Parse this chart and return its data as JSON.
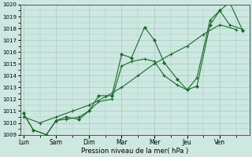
{
  "xlabel": "Pression niveau de la mer( hPa )",
  "ylim": [
    1009,
    1020
  ],
  "yticks": [
    1009,
    1010,
    1011,
    1012,
    1013,
    1014,
    1015,
    1016,
    1017,
    1018,
    1019,
    1020
  ],
  "xtick_labels": [
    "Lun",
    "Sam",
    "Dim",
    "Mar",
    "Mer",
    "Jeu",
    "Ven"
  ],
  "bg_color": "#cce8e0",
  "grid_color": "#a8c8c0",
  "line_color": "#1a6b2a",
  "marker_color": "#1a6b2a",
  "n_days": 7,
  "series1_x": [
    0,
    0.3,
    0.7,
    1.0,
    1.3,
    1.7,
    2.0,
    2.3,
    2.7,
    3.0,
    3.3,
    3.7,
    4.0,
    4.3,
    4.7,
    5.0,
    5.3,
    5.7,
    6.0,
    6.3,
    6.7
  ],
  "series1_y": [
    1010.8,
    1009.4,
    1009.0,
    1010.2,
    1010.5,
    1010.3,
    1011.0,
    1012.3,
    1012.3,
    1015.8,
    1015.5,
    1018.1,
    1017.0,
    1015.1,
    1013.7,
    1012.8,
    1013.1,
    1018.3,
    1019.5,
    1020.2,
    1017.8
  ],
  "series2_x": [
    0,
    0.5,
    1.0,
    1.5,
    2.0,
    2.5,
    3.0,
    3.5,
    4.0,
    4.5,
    5.0,
    5.5,
    6.0,
    6.5
  ],
  "series2_y": [
    1010.5,
    1010.0,
    1010.5,
    1011.0,
    1011.5,
    1012.2,
    1013.0,
    1014.0,
    1015.0,
    1015.8,
    1016.5,
    1017.5,
    1018.3,
    1017.9
  ],
  "series3_x": [
    0,
    0.3,
    0.7,
    1.0,
    1.3,
    1.7,
    2.0,
    2.3,
    2.7,
    3.0,
    3.3,
    3.7,
    4.0,
    4.3,
    4.7,
    5.0,
    5.3,
    5.7,
    6.0,
    6.3,
    6.7
  ],
  "series3_y": [
    1010.8,
    1009.4,
    1009.0,
    1010.2,
    1010.3,
    1010.5,
    1011.0,
    1011.8,
    1012.0,
    1014.8,
    1015.2,
    1015.4,
    1015.2,
    1014.0,
    1013.2,
    1012.8,
    1013.8,
    1018.7,
    1019.5,
    1018.3,
    1017.9
  ]
}
